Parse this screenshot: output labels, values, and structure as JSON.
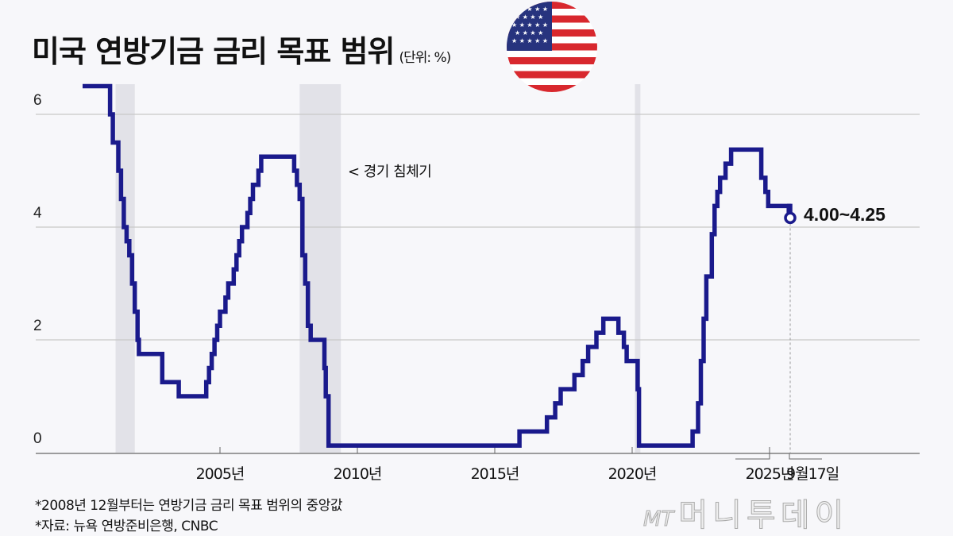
{
  "header": {
    "title": "미국 연방기금 금리 목표 범위",
    "unit": "(단위: %)"
  },
  "flag": {
    "icon": "us-flag-icon"
  },
  "annotations": {
    "recession_label": "< 경기 침체기",
    "latest_value_label": "4.00~4.25",
    "latest_date_label": "9월17일"
  },
  "footnotes": [
    "*2008년 12월부터는 연방기금 금리 목표 범위의 중앙값",
    "*자료: 뉴욕 연방준비은행, CNBC"
  ],
  "watermark": {
    "mt": "MT",
    "name": "머니투데이"
  },
  "colors": {
    "line": "#1a1a8c",
    "recession": "#e2e2e8",
    "grid": "#c8c8c8",
    "axis": "#666666"
  },
  "chart_data": {
    "type": "line",
    "step": true,
    "title": "미국 연방기금 금리 목표 범위",
    "unit": "%",
    "xlabel": "",
    "ylabel": "",
    "ylim": [
      0,
      6.5
    ],
    "yticks": [
      0,
      2,
      4,
      6
    ],
    "xticks": [
      "2005년",
      "2010년",
      "2015년",
      "2020년",
      "2025년"
    ],
    "grid": true,
    "recessions": [
      [
        2001.2,
        2001.9
      ],
      [
        2007.9,
        2009.4
      ],
      [
        2020.1,
        2020.3
      ]
    ],
    "series": [
      {
        "name": "연방기금 금리 목표",
        "points": [
          [
            2000.0,
            6.5
          ],
          [
            2001.0,
            6.0
          ],
          [
            2001.1,
            5.5
          ],
          [
            2001.3,
            5.0
          ],
          [
            2001.4,
            4.5
          ],
          [
            2001.5,
            4.0
          ],
          [
            2001.6,
            3.75
          ],
          [
            2001.7,
            3.5
          ],
          [
            2001.8,
            3.0
          ],
          [
            2001.9,
            2.5
          ],
          [
            2002.0,
            2.0
          ],
          [
            2002.05,
            1.75
          ],
          [
            2002.9,
            1.25
          ],
          [
            2003.5,
            1.0
          ],
          [
            2004.5,
            1.25
          ],
          [
            2004.6,
            1.5
          ],
          [
            2004.7,
            1.75
          ],
          [
            2004.8,
            2.0
          ],
          [
            2004.9,
            2.25
          ],
          [
            2005.0,
            2.5
          ],
          [
            2005.2,
            2.75
          ],
          [
            2005.3,
            3.0
          ],
          [
            2005.5,
            3.25
          ],
          [
            2005.6,
            3.5
          ],
          [
            2005.7,
            3.75
          ],
          [
            2005.8,
            4.0
          ],
          [
            2006.0,
            4.25
          ],
          [
            2006.1,
            4.5
          ],
          [
            2006.2,
            4.75
          ],
          [
            2006.4,
            5.0
          ],
          [
            2006.5,
            5.25
          ],
          [
            2007.7,
            5.0
          ],
          [
            2007.8,
            4.75
          ],
          [
            2007.9,
            4.5
          ],
          [
            2008.0,
            3.5
          ],
          [
            2008.1,
            3.0
          ],
          [
            2008.2,
            2.25
          ],
          [
            2008.3,
            2.0
          ],
          [
            2008.8,
            1.5
          ],
          [
            2008.85,
            1.0
          ],
          [
            2008.95,
            0.125
          ],
          [
            2015.9,
            0.375
          ],
          [
            2016.9,
            0.625
          ],
          [
            2017.2,
            0.875
          ],
          [
            2017.4,
            1.125
          ],
          [
            2017.9,
            1.375
          ],
          [
            2018.2,
            1.625
          ],
          [
            2018.4,
            1.875
          ],
          [
            2018.7,
            2.125
          ],
          [
            2018.95,
            2.375
          ],
          [
            2019.5,
            2.125
          ],
          [
            2019.7,
            1.875
          ],
          [
            2019.8,
            1.625
          ],
          [
            2020.2,
            1.125
          ],
          [
            2020.25,
            0.125
          ],
          [
            2022.2,
            0.375
          ],
          [
            2022.4,
            0.875
          ],
          [
            2022.5,
            1.625
          ],
          [
            2022.6,
            2.375
          ],
          [
            2022.7,
            3.125
          ],
          [
            2022.9,
            3.875
          ],
          [
            2023.0,
            4.375
          ],
          [
            2023.1,
            4.625
          ],
          [
            2023.2,
            4.875
          ],
          [
            2023.4,
            5.125
          ],
          [
            2023.6,
            5.375
          ],
          [
            2024.7,
            4.875
          ],
          [
            2024.85,
            4.625
          ],
          [
            2024.95,
            4.375
          ],
          [
            2025.7,
            4.125
          ]
        ]
      }
    ],
    "latest": {
      "date": "9월17일",
      "range": "4.00~4.25",
      "value": 4.125
    }
  }
}
